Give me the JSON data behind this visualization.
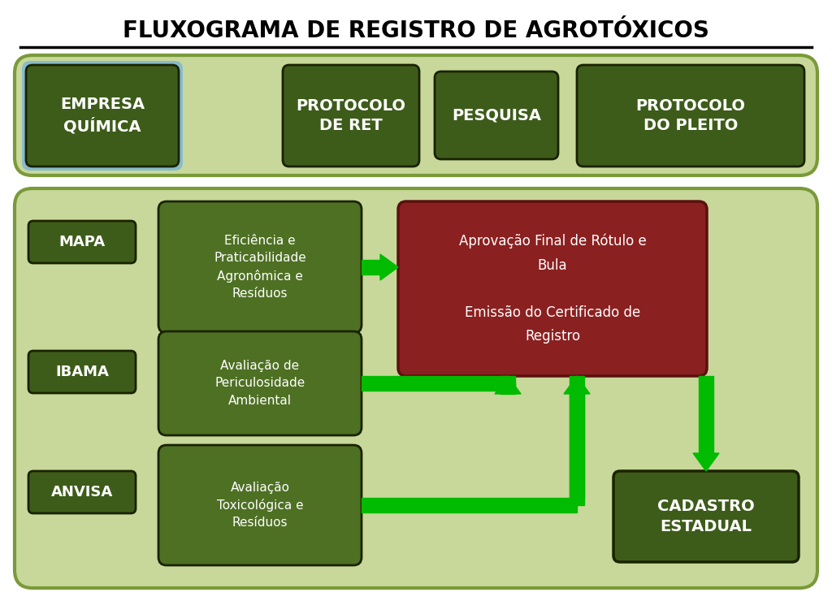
{
  "title": "FLUXOGRAMA DE REGISTRO DE AGROTÓXICOS",
  "title_fontsize": 20,
  "bg_color": "#ffffff",
  "dark_green": "#3d5c1a",
  "medium_green": "#4e7023",
  "light_green_panel": "#c8d89a",
  "panel_border": "#7a9a3a",
  "arrow_green": "#00bb00",
  "red_box_color": "#8b2020",
  "red_box_border": "#5a1010",
  "empresa_border_color": "#88bbcc",
  "box1_label": "EMPRESA\nQUÍMICA",
  "box2_label": "PROTOCOLO\nDE RET",
  "box3_label": "PESQUISA",
  "box4_label": "PROTOCOLO\nDO PLEITO",
  "mapa_label": "MAPA",
  "ibama_label": "IBAMA",
  "anvisa_label": "ANVISA",
  "mapa_desc": "Eficiência e\nPraticabilidade\nAgronômica e\nResíduos",
  "ibama_desc": "Avaliação de\nPericulosidade\nAmbiental",
  "anvisa_desc": "Avaliação\nToxicológica e\nResíduos",
  "approval_label": "Aprovação Final de Rótulo e\nBula\n\nEmissão do Certificado de\nRegistro",
  "cadastro_label": "CADASTRO\nESTADUAL"
}
